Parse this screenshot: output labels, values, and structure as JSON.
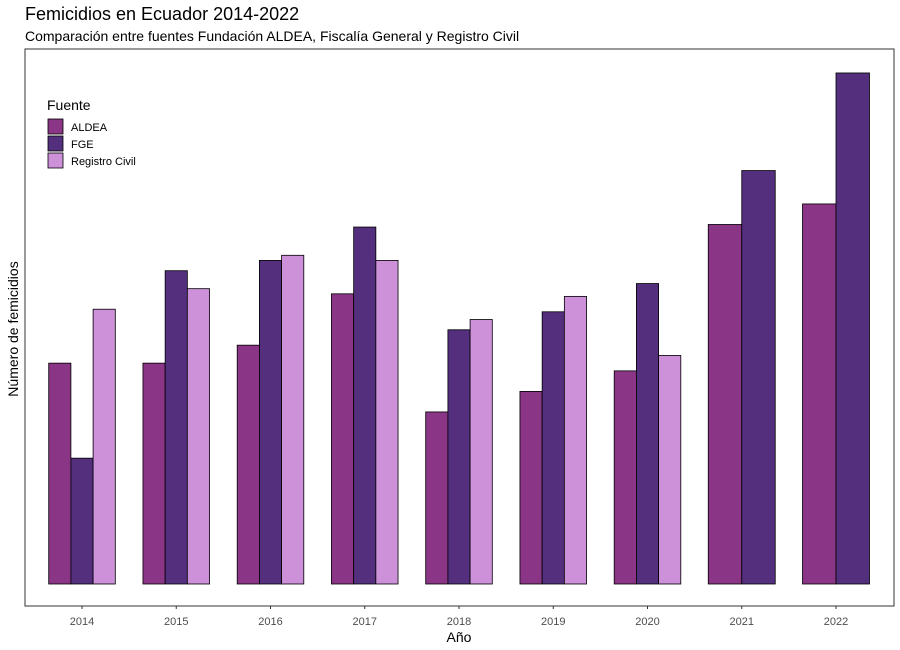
{
  "title": "Femicidios en Ecuador 2014-2022",
  "subtitle": "Comparación entre fuentes Fundación ALDEA, Fiscalía General y Registro Civil",
  "chart_data": {
    "type": "bar",
    "title": "Femicidios en Ecuador 2014-2022",
    "subtitle": "Comparación entre fuentes Fundación ALDEA, Fiscalía General y Registro Civil",
    "xlabel": "Año",
    "ylabel": "Número de femicidios",
    "y_tick_labels_visible": false,
    "grid": false,
    "legend_title": "Fuente",
    "legend_position": "top-left",
    "categories": [
      "2014",
      "2015",
      "2016",
      "2017",
      "2018",
      "2019",
      "2020",
      "2021",
      "2022"
    ],
    "ylim": [
      0,
      200
    ],
    "series": [
      {
        "name": "ALDEA",
        "color": "#8a3586",
        "values": [
          86,
          86,
          93,
          113,
          67,
          75,
          83,
          140,
          148
        ]
      },
      {
        "name": "FGE",
        "color": "#532f7d",
        "values": [
          49,
          122,
          126,
          139,
          99,
          106,
          117,
          161,
          199
        ]
      },
      {
        "name": "Registro Civil",
        "color": "#cc91d9",
        "values": [
          107,
          115,
          128,
          126,
          103,
          112,
          89,
          null,
          null
        ]
      }
    ]
  }
}
